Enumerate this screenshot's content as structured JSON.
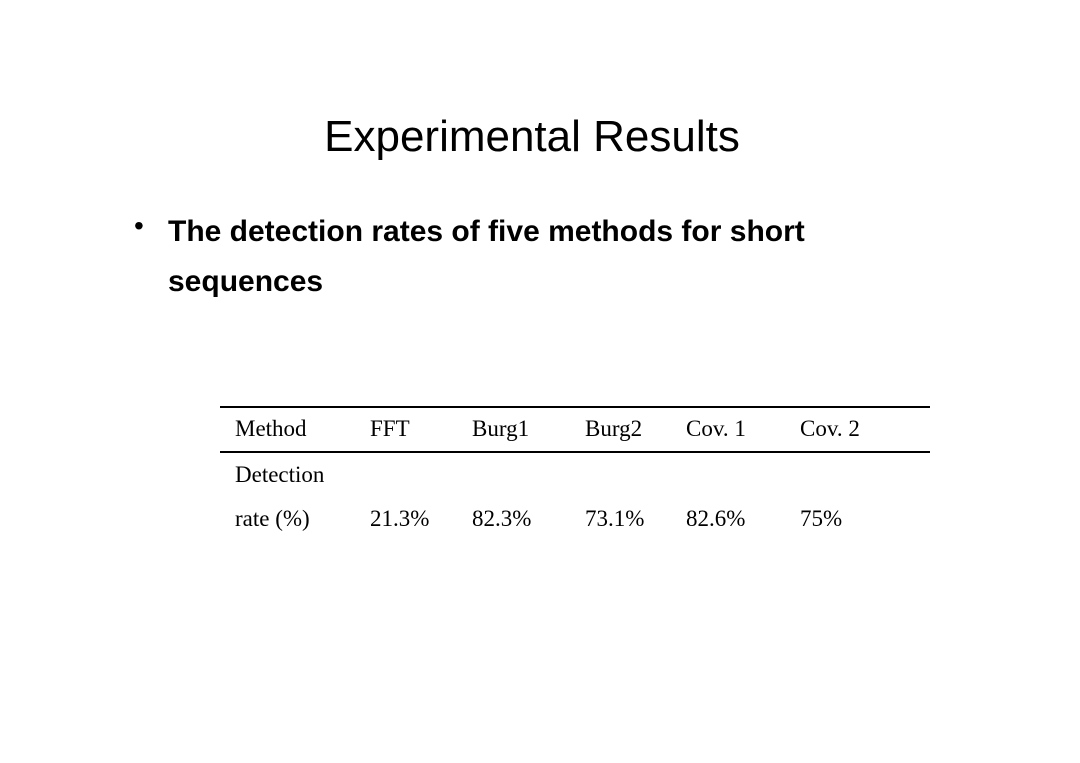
{
  "title": "Experimental Results",
  "bullets": [
    "The detection rates of five methods for  short sequences"
  ],
  "table": {
    "header": [
      "Method",
      "FFT",
      "Burg1",
      "Burg2",
      "Cov. 1",
      "Cov. 2"
    ],
    "rows": [
      {
        "label": [
          "Detection",
          "rate (%)"
        ],
        "values": [
          "21.3%",
          "82.3%",
          "73.1%",
          "82.6%",
          "75%"
        ]
      }
    ]
  }
}
